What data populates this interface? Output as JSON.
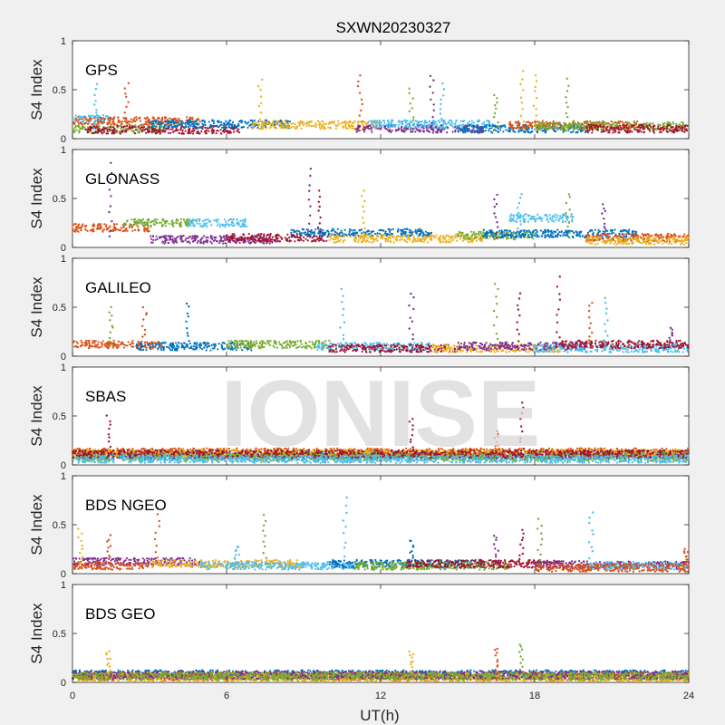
{
  "figure": {
    "title": "SXWN20230327",
    "xlabel": "UT(h)",
    "ylabel": "S4 Index",
    "watermark": "IONISE"
  },
  "chart_data": {
    "type": "scatter",
    "title": "SXWN20230327",
    "xlabel": "UT(h)",
    "ylabel": "S4 Index",
    "xlim": [
      0,
      24
    ],
    "ylim": [
      0,
      1
    ],
    "x_ticks": [
      0,
      6,
      12,
      18,
      24
    ],
    "y_ticks": [
      0,
      0.5,
      1
    ],
    "grid": false,
    "palette": [
      "#0072BD",
      "#D95319",
      "#EDB120",
      "#7E2F8E",
      "#77AC30",
      "#4DBEEE",
      "#A2142F"
    ],
    "panels": [
      {
        "label": "GPS",
        "baseline_range": [
          0.07,
          0.22
        ],
        "arcs": [
          {
            "color": "#4DBEEE",
            "x": [
              0,
              1.5
            ],
            "level": 0.2
          },
          {
            "color": "#D95319",
            "x": [
              0,
              5
            ],
            "level": 0.18
          },
          {
            "color": "#77AC30",
            "x": [
              0,
              3.5
            ],
            "level": 0.1
          },
          {
            "color": "#A2142F",
            "x": [
              0.5,
              6.5
            ],
            "level": 0.09
          },
          {
            "color": "#0072BD",
            "x": [
              3,
              8.5
            ],
            "level": 0.15
          },
          {
            "color": "#EDB120",
            "x": [
              7,
              12
            ],
            "level": 0.14
          },
          {
            "color": "#7E2F8E",
            "x": [
              11,
              16
            ],
            "level": 0.1
          },
          {
            "color": "#4DBEEE",
            "x": [
              11.5,
              16.5
            ],
            "level": 0.15
          },
          {
            "color": "#0072BD",
            "x": [
              15,
              20
            ],
            "level": 0.1
          },
          {
            "color": "#D95319",
            "x": [
              17,
              22
            ],
            "level": 0.14
          },
          {
            "color": "#77AC30",
            "x": [
              18,
              24
            ],
            "level": 0.13
          },
          {
            "color": "#A2142F",
            "x": [
              20,
              24
            ],
            "level": 0.1
          }
        ],
        "spikes": [
          {
            "x": 0.9,
            "peak": 0.55,
            "color": "#4DBEEE"
          },
          {
            "x": 2.1,
            "peak": 0.58,
            "color": "#D95319"
          },
          {
            "x": 7.3,
            "peak": 0.6,
            "color": "#EDB120"
          },
          {
            "x": 11.2,
            "peak": 0.65,
            "color": "#D95319"
          },
          {
            "x": 13.2,
            "peak": 0.5,
            "color": "#77AC30"
          },
          {
            "x": 14.0,
            "peak": 0.65,
            "color": "#7E2F8E"
          },
          {
            "x": 14.4,
            "peak": 0.55,
            "color": "#4DBEEE"
          },
          {
            "x": 16.5,
            "peak": 0.45,
            "color": "#77AC30"
          },
          {
            "x": 17.5,
            "peak": 0.68,
            "color": "#EDB120"
          },
          {
            "x": 18.0,
            "peak": 0.66,
            "color": "#EDB120"
          },
          {
            "x": 19.3,
            "peak": 0.6,
            "color": "#77AC30"
          }
        ]
      },
      {
        "label": "GLONASS",
        "baseline_range": [
          0.05,
          0.3
        ],
        "arcs": [
          {
            "color": "#D95319",
            "x": [
              0,
              3
            ],
            "level": 0.2
          },
          {
            "color": "#77AC30",
            "x": [
              2,
              4.7
            ],
            "level": 0.25
          },
          {
            "color": "#4DBEEE",
            "x": [
              4.5,
              6.8
            ],
            "level": 0.25
          },
          {
            "color": "#7E2F8E",
            "x": [
              3,
              8
            ],
            "level": 0.08
          },
          {
            "color": "#A2142F",
            "x": [
              6,
              10
            ],
            "level": 0.1
          },
          {
            "color": "#0072BD",
            "x": [
              8.5,
              14
            ],
            "level": 0.15
          },
          {
            "color": "#EDB120",
            "x": [
              10,
              16
            ],
            "level": 0.09
          },
          {
            "color": "#77AC30",
            "x": [
              15,
              18
            ],
            "level": 0.12
          },
          {
            "color": "#4DBEEE",
            "x": [
              17,
              19.5
            ],
            "level": 0.3
          },
          {
            "color": "#0072BD",
            "x": [
              16,
              22
            ],
            "level": 0.14
          },
          {
            "color": "#D95319",
            "x": [
              20,
              24
            ],
            "level": 0.1
          },
          {
            "color": "#EDB120",
            "x": [
              20,
              24
            ],
            "level": 0.07
          }
        ],
        "spikes": [
          {
            "x": 1.5,
            "peak": 0.85,
            "color": "#7E2F8E"
          },
          {
            "x": 9.2,
            "peak": 0.8,
            "color": "#7E2F8E"
          },
          {
            "x": 9.6,
            "peak": 0.58,
            "color": "#A2142F"
          },
          {
            "x": 11.3,
            "peak": 0.58,
            "color": "#EDB120"
          },
          {
            "x": 16.5,
            "peak": 0.55,
            "color": "#7E2F8E"
          },
          {
            "x": 17.4,
            "peak": 0.55,
            "color": "#4DBEEE"
          },
          {
            "x": 19.3,
            "peak": 0.55,
            "color": "#77AC30"
          },
          {
            "x": 20.7,
            "peak": 0.45,
            "color": "#7E2F8E"
          }
        ]
      },
      {
        "label": "GALILEO",
        "baseline_range": [
          0.05,
          0.2
        ],
        "arcs": [
          {
            "color": "#D95319",
            "x": [
              0,
              3.5
            ],
            "level": 0.12
          },
          {
            "color": "#0072BD",
            "x": [
              2.5,
              7
            ],
            "level": 0.1
          },
          {
            "color": "#77AC30",
            "x": [
              6,
              10
            ],
            "level": 0.12
          },
          {
            "color": "#4DBEEE",
            "x": [
              9.5,
              14
            ],
            "level": 0.1
          },
          {
            "color": "#A2142F",
            "x": [
              10,
              15
            ],
            "level": 0.08
          },
          {
            "color": "#EDB120",
            "x": [
              14,
              19
            ],
            "level": 0.08
          },
          {
            "color": "#7E2F8E",
            "x": [
              15,
              20
            ],
            "level": 0.1
          },
          {
            "color": "#4DBEEE",
            "x": [
              18,
              24
            ],
            "level": 0.08
          },
          {
            "color": "#A2142F",
            "x": [
              19,
              24
            ],
            "level": 0.12
          }
        ],
        "spikes": [
          {
            "x": 1.5,
            "peak": 0.5,
            "color": "#77AC30"
          },
          {
            "x": 2.8,
            "peak": 0.5,
            "color": "#D95319"
          },
          {
            "x": 4.5,
            "peak": 0.55,
            "color": "#0072BD"
          },
          {
            "x": 10.5,
            "peak": 0.68,
            "color": "#4DBEEE"
          },
          {
            "x": 13.2,
            "peak": 0.65,
            "color": "#7E2F8E"
          },
          {
            "x": 16.5,
            "peak": 0.75,
            "color": "#77AC30"
          },
          {
            "x": 17.4,
            "peak": 0.65,
            "color": "#A2142F"
          },
          {
            "x": 18.9,
            "peak": 0.8,
            "color": "#A2142F"
          },
          {
            "x": 20.2,
            "peak": 0.55,
            "color": "#D95319"
          },
          {
            "x": 20.8,
            "peak": 0.6,
            "color": "#4DBEEE"
          },
          {
            "x": 23.3,
            "peak": 0.28,
            "color": "#7E2F8E"
          }
        ]
      },
      {
        "label": "SBAS",
        "baseline_range": [
          0.06,
          0.16
        ],
        "arcs": [
          {
            "color": "#0072BD",
            "x": [
              0,
              24
            ],
            "level": 0.1
          },
          {
            "color": "#D95319",
            "x": [
              0,
              24
            ],
            "level": 0.13
          },
          {
            "color": "#EDB120",
            "x": [
              0,
              24
            ],
            "level": 0.12
          },
          {
            "color": "#77AC30",
            "x": [
              0,
              24
            ],
            "level": 0.08
          },
          {
            "color": "#A2142F",
            "x": [
              0,
              24
            ],
            "level": 0.11
          },
          {
            "color": "#4DBEEE",
            "x": [
              0,
              24
            ],
            "level": 0.06
          }
        ],
        "spikes": [
          {
            "x": 1.4,
            "peak": 0.5,
            "color": "#A2142F"
          },
          {
            "x": 13.2,
            "peak": 0.48,
            "color": "#A2142F"
          },
          {
            "x": 17.5,
            "peak": 0.65,
            "color": "#A2142F"
          },
          {
            "x": 16.5,
            "peak": 0.35,
            "color": "#D95319"
          }
        ]
      },
      {
        "label": "BDS NGEO",
        "baseline_range": [
          0.05,
          0.2
        ],
        "arcs": [
          {
            "color": "#7E2F8E",
            "x": [
              0,
              5
            ],
            "level": 0.12
          },
          {
            "color": "#D95319",
            "x": [
              0,
              3
            ],
            "level": 0.08
          },
          {
            "color": "#EDB120",
            "x": [
              3,
              9
            ],
            "level": 0.1
          },
          {
            "color": "#4DBEEE",
            "x": [
              5,
              11
            ],
            "level": 0.08
          },
          {
            "color": "#0072BD",
            "x": [
              10,
              16
            ],
            "level": 0.1
          },
          {
            "color": "#77AC30",
            "x": [
              11,
              17
            ],
            "level": 0.08
          },
          {
            "color": "#A2142F",
            "x": [
              13,
              19
            ],
            "level": 0.1
          },
          {
            "color": "#7E2F8E",
            "x": [
              18,
              24
            ],
            "level": 0.09
          },
          {
            "color": "#4DBEEE",
            "x": [
              20,
              24
            ],
            "level": 0.08
          },
          {
            "color": "#D95319",
            "x": [
              18,
              24
            ],
            "level": 0.06
          }
        ],
        "spikes": [
          {
            "x": 0.3,
            "peak": 0.45,
            "color": "#EDB120"
          },
          {
            "x": 1.4,
            "peak": 0.38,
            "color": "#D95319"
          },
          {
            "x": 3.3,
            "peak": 0.68,
            "color": "#D95319"
          },
          {
            "x": 6.4,
            "peak": 0.28,
            "color": "#4DBEEE"
          },
          {
            "x": 7.5,
            "peak": 0.6,
            "color": "#77AC30"
          },
          {
            "x": 10.6,
            "peak": 0.78,
            "color": "#4DBEEE"
          },
          {
            "x": 13.2,
            "peak": 0.35,
            "color": "#0072BD"
          },
          {
            "x": 16.5,
            "peak": 0.4,
            "color": "#7E2F8E"
          },
          {
            "x": 17.5,
            "peak": 0.45,
            "color": "#A2142F"
          },
          {
            "x": 18.2,
            "peak": 0.55,
            "color": "#77AC30"
          },
          {
            "x": 20.2,
            "peak": 0.62,
            "color": "#4DBEEE"
          },
          {
            "x": 23.9,
            "peak": 0.25,
            "color": "#D95319"
          }
        ]
      },
      {
        "label": "BDS GEO",
        "baseline_range": [
          0.05,
          0.09
        ],
        "arcs": [
          {
            "color": "#0072BD",
            "x": [
              0,
              24
            ],
            "level": 0.085
          },
          {
            "color": "#D95319",
            "x": [
              0,
              24
            ],
            "level": 0.06
          },
          {
            "color": "#EDB120",
            "x": [
              0,
              24
            ],
            "level": 0.05
          },
          {
            "color": "#7E2F8E",
            "x": [
              0,
              24
            ],
            "level": 0.075
          },
          {
            "color": "#77AC30",
            "x": [
              0,
              24
            ],
            "level": 0.065
          }
        ],
        "spikes": [
          {
            "x": 1.4,
            "peak": 0.33,
            "color": "#EDB120"
          },
          {
            "x": 13.2,
            "peak": 0.32,
            "color": "#EDB120"
          },
          {
            "x": 16.5,
            "peak": 0.35,
            "color": "#D95319"
          },
          {
            "x": 17.5,
            "peak": 0.4,
            "color": "#77AC30"
          }
        ]
      }
    ]
  }
}
